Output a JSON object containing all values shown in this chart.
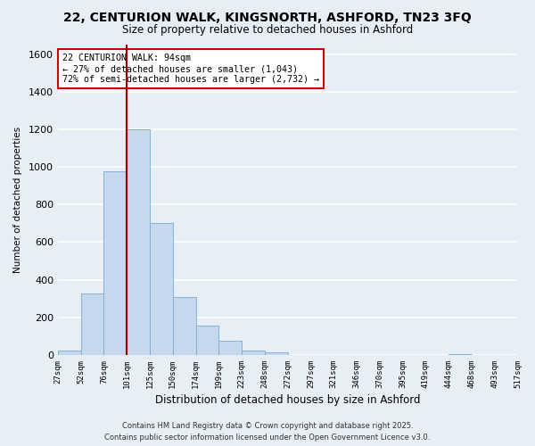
{
  "title": "22, CENTURION WALK, KINGSNORTH, ASHFORD, TN23 3FQ",
  "subtitle": "Size of property relative to detached houses in Ashford",
  "xlabel": "Distribution of detached houses by size in Ashford",
  "ylabel": "Number of detached properties",
  "bar_values": [
    25,
    325,
    975,
    1200,
    700,
    310,
    155,
    75,
    25,
    15,
    2,
    1,
    0,
    0,
    0,
    0,
    0,
    5,
    0,
    2
  ],
  "bin_labels": [
    "27sqm",
    "52sqm",
    "76sqm",
    "101sqm",
    "125sqm",
    "150sqm",
    "174sqm",
    "199sqm",
    "223sqm",
    "248sqm",
    "272sqm",
    "297sqm",
    "321sqm",
    "346sqm",
    "370sqm",
    "395sqm",
    "419sqm",
    "444sqm",
    "468sqm",
    "493sqm"
  ],
  "bar_color": "#c5d8ed",
  "bar_edge_color": "#7aaad0",
  "vline_color": "#990000",
  "vline_pos": 2.5,
  "ylim": [
    0,
    1650
  ],
  "yticks": [
    0,
    200,
    400,
    600,
    800,
    1000,
    1200,
    1400,
    1600
  ],
  "annotation_line1": "22 CENTURION WALK: 94sqm",
  "annotation_line2": "← 27% of detached houses are smaller (1,043)",
  "annotation_line3": "72% of semi-detached houses are larger (2,732) →",
  "annotation_box_color": "#ffffff",
  "annotation_box_edge": "#cc0000",
  "footer_line1": "Contains HM Land Registry data © Crown copyright and database right 2025.",
  "footer_line2": "Contains public sector information licensed under the Open Government Licence v3.0.",
  "bg_color": "#e8eef5",
  "grid_color": "#ffffff",
  "extra_label": "517sqm"
}
